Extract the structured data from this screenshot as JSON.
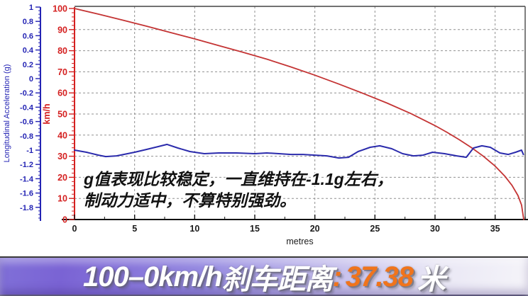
{
  "chart_data": {
    "type": "line",
    "title": "",
    "xlabel": "metres",
    "x_ticks": [
      "0",
      "5",
      "10",
      "15",
      "20",
      "25",
      "30",
      "35"
    ],
    "x_range": [
      0,
      37.5
    ],
    "grid": "dashed",
    "legend": "none",
    "axes": {
      "g_axis": {
        "title": "Longitudinal Acceleration (g)",
        "ticks": [
          "1",
          "0.8",
          "0.6",
          "0.4",
          "0.2",
          "0",
          "-0.2",
          "-0.4",
          "-0.6",
          "-0.8",
          "-1",
          "-1.2",
          "-1.4",
          "-1.6",
          "-1.8"
        ],
        "range": [
          1,
          -1.8
        ],
        "color": "#2424b4"
      },
      "speed_axis": {
        "title": "km/h",
        "ticks": [
          "100",
          "90",
          "80",
          "70",
          "60",
          "50",
          "40",
          "30",
          "20",
          "10",
          "0"
        ],
        "range": [
          0,
          100
        ],
        "color": "#d42020"
      }
    },
    "series": [
      {
        "name": "speed-kmh",
        "axis": "speed",
        "color": "#c43434",
        "points": [
          [
            0,
            100
          ],
          [
            2,
            97.3
          ],
          [
            4,
            94.5
          ],
          [
            6,
            91.6
          ],
          [
            8,
            88.6
          ],
          [
            10,
            85.6
          ],
          [
            12,
            82.4
          ],
          [
            14,
            79.3
          ],
          [
            16,
            76.0
          ],
          [
            18,
            72.3
          ],
          [
            20,
            68.4
          ],
          [
            22,
            64.2
          ],
          [
            24,
            59.8
          ],
          [
            26,
            55.2
          ],
          [
            28,
            50.2
          ],
          [
            30,
            44.5
          ],
          [
            31,
            41.3
          ],
          [
            32,
            37.9
          ],
          [
            33,
            34.2
          ],
          [
            34,
            30.1
          ],
          [
            35,
            25.3
          ],
          [
            35.8,
            20.6
          ],
          [
            36.4,
            16.2
          ],
          [
            36.9,
            11.4
          ],
          [
            37.2,
            6.9
          ],
          [
            37.38,
            0
          ]
        ]
      },
      {
        "name": "longitudinal-acceleration-g",
        "axis": "g",
        "color": "#2b2bac",
        "points": [
          [
            0,
            -1.0
          ],
          [
            1,
            -1.03
          ],
          [
            2,
            -1.07
          ],
          [
            2.6,
            -1.09
          ],
          [
            3.5,
            -1.08
          ],
          [
            5,
            -1.03
          ],
          [
            6,
            -0.99
          ],
          [
            7,
            -0.95
          ],
          [
            7.7,
            -0.92
          ],
          [
            8.6,
            -0.97
          ],
          [
            9.6,
            -1.02
          ],
          [
            10.8,
            -1.05
          ],
          [
            12,
            -1.04
          ],
          [
            13.5,
            -1.04
          ],
          [
            15,
            -1.05
          ],
          [
            16,
            -1.04
          ],
          [
            17,
            -1.05
          ],
          [
            18,
            -1.06
          ],
          [
            19,
            -1.06
          ],
          [
            20,
            -1.07
          ],
          [
            21,
            -1.08
          ],
          [
            22,
            -1.11
          ],
          [
            22.8,
            -1.1
          ],
          [
            23.6,
            -1.02
          ],
          [
            24.6,
            -0.96
          ],
          [
            25.4,
            -0.94
          ],
          [
            26.4,
            -0.98
          ],
          [
            27.3,
            -1.05
          ],
          [
            28.2,
            -1.08
          ],
          [
            29,
            -1.07
          ],
          [
            29.8,
            -1.03
          ],
          [
            30.8,
            -1.05
          ],
          [
            31.8,
            -1.08
          ],
          [
            32.6,
            -1.1
          ],
          [
            33.2,
            -0.97
          ],
          [
            33.9,
            -0.94
          ],
          [
            34.6,
            -0.96
          ],
          [
            35.4,
            -1.04
          ],
          [
            36.1,
            -1.06
          ],
          [
            36.7,
            -1.03
          ],
          [
            37.2,
            -1.0
          ],
          [
            37.35,
            -1.06
          ]
        ]
      }
    ],
    "annotation": {
      "line1": "g值表现比较稳定，一直维持在-1.1g左右，",
      "line2": "制动力适中，不算特别强劲。"
    }
  },
  "banner": {
    "prefix": "100–0km/h",
    "label": "刹车距离",
    "colon": ":",
    "value": "37.38",
    "unit": "米",
    "value_color": "#f0741c"
  }
}
